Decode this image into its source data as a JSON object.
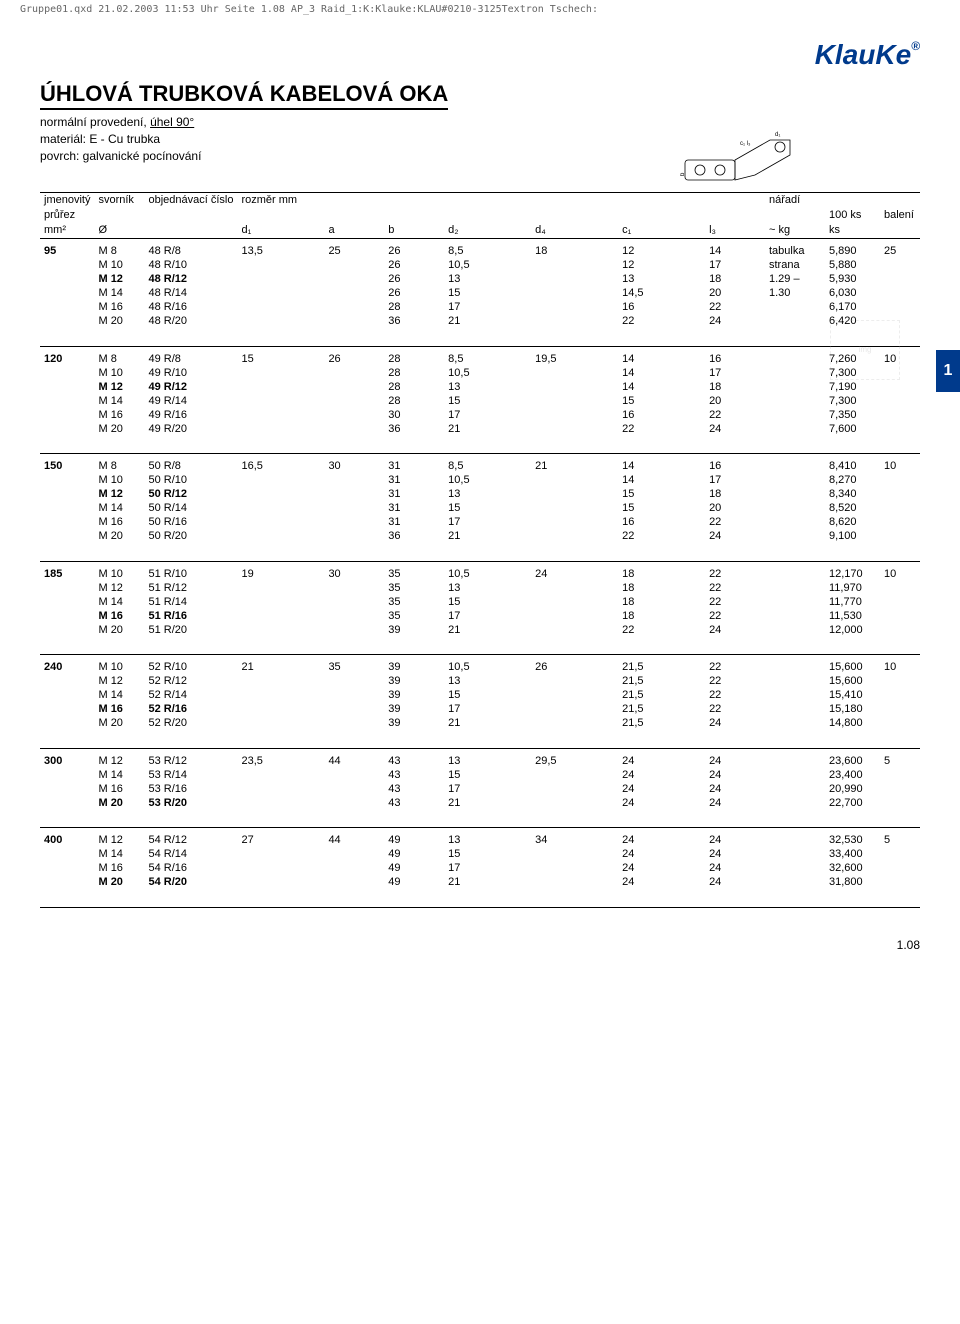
{
  "print_header": "Gruppe01.qxd 21.02.2003 11:53 Uhr Seite 1.08 AP_3 Raid_1:K:Klauke:KLAU#0210-3125Textron Tschech:",
  "logo_text": "KlauKe",
  "logo_reg": "®",
  "title": "ÚHLOVÁ TRUBKOVÁ KABELOVÁ OKA",
  "subtitle_line1_a": "normální provedení, ",
  "subtitle_line1_b": "úhel 90°",
  "subtitle_line2": "materiál: E - Cu trubka",
  "subtitle_line3": "povrch: galvanické pocínování",
  "page_tab_label": "1",
  "footer_page": "1.08",
  "headers": {
    "row1": {
      "c0": "jmenovitý",
      "c1": "svorník",
      "c2": "objednávací číslo",
      "c3": "rozměr mm",
      "c10": "nářadí"
    },
    "row2": {
      "c0": "průřez",
      "c11": "100 ks",
      "c12": "balení"
    },
    "row3": {
      "c0": "mm²",
      "c1": "Ø",
      "c3": "d₁",
      "c4": "a",
      "c5": "b",
      "c6": "d₂",
      "c7": "d₄",
      "c8": "c₁",
      "c9": "l₃",
      "c10": "~ kg",
      "c11": "ks"
    }
  },
  "groups": [
    {
      "size": "95",
      "rows": [
        {
          "sv": "M  8",
          "ord": "48 R/8",
          "d1": "13,5",
          "a": "25",
          "b": "26",
          "d2": "8,5",
          "d4": "18",
          "c1": "12",
          "l3": "14",
          "tool": "tabulka",
          "wt": "5,890",
          "pack": "25",
          "bold": false
        },
        {
          "sv": "M 10",
          "ord": "48 R/10",
          "d1": "",
          "a": "",
          "b": "26",
          "d2": "10,5",
          "d4": "",
          "c1": "12",
          "l3": "17",
          "tool": "strana",
          "wt": "5,880",
          "pack": "",
          "bold": false
        },
        {
          "sv": "M 12",
          "ord": "48 R/12",
          "d1": "",
          "a": "",
          "b": "26",
          "d2": "13",
          "d4": "",
          "c1": "13",
          "l3": "18",
          "tool": "1.29 –",
          "wt": "5,930",
          "pack": "",
          "bold": true
        },
        {
          "sv": "M 14",
          "ord": "48 R/14",
          "d1": "",
          "a": "",
          "b": "26",
          "d2": "15",
          "d4": "",
          "c1": "14,5",
          "l3": "20",
          "tool": "1.30",
          "wt": "6,030",
          "pack": "",
          "bold": false
        },
        {
          "sv": "M 16",
          "ord": "48 R/16",
          "d1": "",
          "a": "",
          "b": "28",
          "d2": "17",
          "d4": "",
          "c1": "16",
          "l3": "22",
          "tool": "",
          "wt": "6,170",
          "pack": "",
          "bold": false
        },
        {
          "sv": "M 20",
          "ord": "48 R/20",
          "d1": "",
          "a": "",
          "b": "36",
          "d2": "21",
          "d4": "",
          "c1": "22",
          "l3": "24",
          "tool": "",
          "wt": "6,420",
          "pack": "",
          "bold": false
        }
      ]
    },
    {
      "size": "120",
      "rows": [
        {
          "sv": "M  8",
          "ord": "49 R/8",
          "d1": "15",
          "a": "26",
          "b": "28",
          "d2": "8,5",
          "d4": "19,5",
          "c1": "14",
          "l3": "16",
          "tool": "",
          "wt": "7,260",
          "pack": "10",
          "bold": false
        },
        {
          "sv": "M 10",
          "ord": "49 R/10",
          "d1": "",
          "a": "",
          "b": "28",
          "d2": "10,5",
          "d4": "",
          "c1": "14",
          "l3": "17",
          "tool": "",
          "wt": "7,300",
          "pack": "",
          "bold": false
        },
        {
          "sv": "M 12",
          "ord": "49 R/12",
          "d1": "",
          "a": "",
          "b": "28",
          "d2": "13",
          "d4": "",
          "c1": "14",
          "l3": "18",
          "tool": "",
          "wt": "7,190",
          "pack": "",
          "bold": true
        },
        {
          "sv": "M 14",
          "ord": "49 R/14",
          "d1": "",
          "a": "",
          "b": "28",
          "d2": "15",
          "d4": "",
          "c1": "15",
          "l3": "20",
          "tool": "",
          "wt": "7,300",
          "pack": "",
          "bold": false
        },
        {
          "sv": "M 16",
          "ord": "49 R/16",
          "d1": "",
          "a": "",
          "b": "30",
          "d2": "17",
          "d4": "",
          "c1": "16",
          "l3": "22",
          "tool": "",
          "wt": "7,350",
          "pack": "",
          "bold": false
        },
        {
          "sv": "M 20",
          "ord": "49 R/20",
          "d1": "",
          "a": "",
          "b": "36",
          "d2": "21",
          "d4": "",
          "c1": "22",
          "l3": "24",
          "tool": "",
          "wt": "7,600",
          "pack": "",
          "bold": false
        }
      ]
    },
    {
      "size": "150",
      "rows": [
        {
          "sv": "M  8",
          "ord": "50 R/8",
          "d1": "16,5",
          "a": "30",
          "b": "31",
          "d2": "8,5",
          "d4": "21",
          "c1": "14",
          "l3": "16",
          "tool": "",
          "wt": "8,410",
          "pack": "10",
          "bold": false
        },
        {
          "sv": "M 10",
          "ord": "50 R/10",
          "d1": "",
          "a": "",
          "b": "31",
          "d2": "10,5",
          "d4": "",
          "c1": "14",
          "l3": "17",
          "tool": "",
          "wt": "8,270",
          "pack": "",
          "bold": false
        },
        {
          "sv": "M 12",
          "ord": "50 R/12",
          "d1": "",
          "a": "",
          "b": "31",
          "d2": "13",
          "d4": "",
          "c1": "15",
          "l3": "18",
          "tool": "",
          "wt": "8,340",
          "pack": "",
          "bold": true
        },
        {
          "sv": "M 14",
          "ord": "50 R/14",
          "d1": "",
          "a": "",
          "b": "31",
          "d2": "15",
          "d4": "",
          "c1": "15",
          "l3": "20",
          "tool": "",
          "wt": "8,520",
          "pack": "",
          "bold": false
        },
        {
          "sv": "M 16",
          "ord": "50 R/16",
          "d1": "",
          "a": "",
          "b": "31",
          "d2": "17",
          "d4": "",
          "c1": "16",
          "l3": "22",
          "tool": "",
          "wt": "8,620",
          "pack": "",
          "bold": false
        },
        {
          "sv": "M 20",
          "ord": "50 R/20",
          "d1": "",
          "a": "",
          "b": "36",
          "d2": "21",
          "d4": "",
          "c1": "22",
          "l3": "24",
          "tool": "",
          "wt": "9,100",
          "pack": "",
          "bold": false
        }
      ]
    },
    {
      "size": "185",
      "rows": [
        {
          "sv": "M 10",
          "ord": "51 R/10",
          "d1": "19",
          "a": "30",
          "b": "35",
          "d2": "10,5",
          "d4": "24",
          "c1": "18",
          "l3": "22",
          "tool": "",
          "wt": "12,170",
          "pack": "10",
          "bold": false
        },
        {
          "sv": "M 12",
          "ord": "51 R/12",
          "d1": "",
          "a": "",
          "b": "35",
          "d2": "13",
          "d4": "",
          "c1": "18",
          "l3": "22",
          "tool": "",
          "wt": "11,970",
          "pack": "",
          "bold": false
        },
        {
          "sv": "M 14",
          "ord": "51 R/14",
          "d1": "",
          "a": "",
          "b": "35",
          "d2": "15",
          "d4": "",
          "c1": "18",
          "l3": "22",
          "tool": "",
          "wt": "11,770",
          "pack": "",
          "bold": false
        },
        {
          "sv": "M 16",
          "ord": "51 R/16",
          "d1": "",
          "a": "",
          "b": "35",
          "d2": "17",
          "d4": "",
          "c1": "18",
          "l3": "22",
          "tool": "",
          "wt": "11,530",
          "pack": "",
          "bold": true
        },
        {
          "sv": "M 20",
          "ord": "51 R/20",
          "d1": "",
          "a": "",
          "b": "39",
          "d2": "21",
          "d4": "",
          "c1": "22",
          "l3": "24",
          "tool": "",
          "wt": "12,000",
          "pack": "",
          "bold": false
        }
      ]
    },
    {
      "size": "240",
      "rows": [
        {
          "sv": "M 10",
          "ord": "52 R/10",
          "d1": "21",
          "a": "35",
          "b": "39",
          "d2": "10,5",
          "d4": "26",
          "c1": "21,5",
          "l3": "22",
          "tool": "",
          "wt": "15,600",
          "pack": "10",
          "bold": false
        },
        {
          "sv": "M 12",
          "ord": "52 R/12",
          "d1": "",
          "a": "",
          "b": "39",
          "d2": "13",
          "d4": "",
          "c1": "21,5",
          "l3": "22",
          "tool": "",
          "wt": "15,600",
          "pack": "",
          "bold": false
        },
        {
          "sv": "M 14",
          "ord": "52 R/14",
          "d1": "",
          "a": "",
          "b": "39",
          "d2": "15",
          "d4": "",
          "c1": "21,5",
          "l3": "22",
          "tool": "",
          "wt": "15,410",
          "pack": "",
          "bold": false
        },
        {
          "sv": "M 16",
          "ord": "52 R/16",
          "d1": "",
          "a": "",
          "b": "39",
          "d2": "17",
          "d4": "",
          "c1": "21,5",
          "l3": "22",
          "tool": "",
          "wt": "15,180",
          "pack": "",
          "bold": true
        },
        {
          "sv": "M 20",
          "ord": "52 R/20",
          "d1": "",
          "a": "",
          "b": "39",
          "d2": "21",
          "d4": "",
          "c1": "21,5",
          "l3": "24",
          "tool": "",
          "wt": "14,800",
          "pack": "",
          "bold": false
        }
      ]
    },
    {
      "size": "300",
      "rows": [
        {
          "sv": "M 12",
          "ord": "53 R/12",
          "d1": "23,5",
          "a": "44",
          "b": "43",
          "d2": "13",
          "d4": "29,5",
          "c1": "24",
          "l3": "24",
          "tool": "",
          "wt": "23,600",
          "pack": "5",
          "bold": false
        },
        {
          "sv": "M 14",
          "ord": "53 R/14",
          "d1": "",
          "a": "",
          "b": "43",
          "d2": "15",
          "d4": "",
          "c1": "24",
          "l3": "24",
          "tool": "",
          "wt": "23,400",
          "pack": "",
          "bold": false
        },
        {
          "sv": "M 16",
          "ord": "53 R/16",
          "d1": "",
          "a": "",
          "b": "43",
          "d2": "17",
          "d4": "",
          "c1": "24",
          "l3": "24",
          "tool": "",
          "wt": "20,990",
          "pack": "",
          "bold": false
        },
        {
          "sv": "M 20",
          "ord": "53 R/20",
          "d1": "",
          "a": "",
          "b": "43",
          "d2": "21",
          "d4": "",
          "c1": "24",
          "l3": "24",
          "tool": "",
          "wt": "22,700",
          "pack": "",
          "bold": true
        }
      ]
    },
    {
      "size": "400",
      "rows": [
        {
          "sv": "M 12",
          "ord": "54 R/12",
          "d1": "27",
          "a": "44",
          "b": "49",
          "d2": "13",
          "d4": "34",
          "c1": "24",
          "l3": "24",
          "tool": "",
          "wt": "32,530",
          "pack": "5",
          "bold": false
        },
        {
          "sv": "M 14",
          "ord": "54 R/14",
          "d1": "",
          "a": "",
          "b": "49",
          "d2": "15",
          "d4": "",
          "c1": "24",
          "l3": "24",
          "tool": "",
          "wt": "33,400",
          "pack": "",
          "bold": false
        },
        {
          "sv": "M 16",
          "ord": "54 R/16",
          "d1": "",
          "a": "",
          "b": "49",
          "d2": "17",
          "d4": "",
          "c1": "24",
          "l3": "24",
          "tool": "",
          "wt": "32,600",
          "pack": "",
          "bold": false
        },
        {
          "sv": "M 20",
          "ord": "54 R/20",
          "d1": "",
          "a": "",
          "b": "49",
          "d2": "21",
          "d4": "",
          "c1": "24",
          "l3": "24",
          "tool": "",
          "wt": "31,800",
          "pack": "",
          "bold": true
        }
      ]
    }
  ],
  "colors": {
    "brand": "#003a8c",
    "text": "#000000",
    "rule": "#000000",
    "bg": "#ffffff"
  }
}
